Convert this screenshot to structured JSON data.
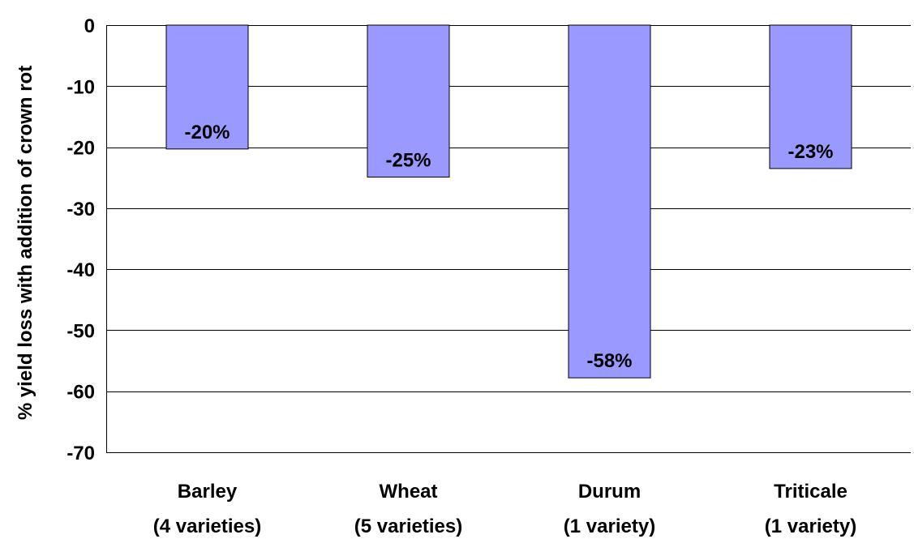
{
  "chart_data": {
    "type": "bar",
    "title": "",
    "xlabel": "",
    "ylabel": "% yield loss with addition of crown rot",
    "ylim": [
      -70,
      0
    ],
    "yticks": [
      0,
      -10,
      -20,
      -30,
      -40,
      -50,
      -60,
      -70
    ],
    "grid": true,
    "legend": "none",
    "categories": [
      {
        "name": "Barley",
        "sub": "(4 varieties)"
      },
      {
        "name": "Wheat",
        "sub": "(5 varieties)"
      },
      {
        "name": "Durum",
        "sub": "(1 variety)"
      },
      {
        "name": "Triticale",
        "sub": "(1 variety)"
      }
    ],
    "values": [
      -20.3,
      -24.9,
      -57.8,
      -23.5
    ],
    "data_labels": [
      "-20%",
      "-25%",
      "-58%",
      "-23%"
    ],
    "colors": {
      "bar_fill": "#9999ff",
      "bar_stroke": "#000000",
      "grid": "#000000",
      "text": "#000000"
    }
  }
}
